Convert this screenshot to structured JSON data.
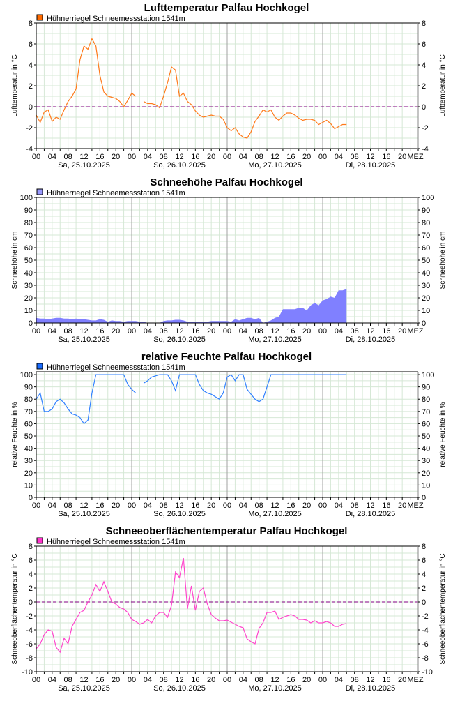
{
  "station": "Hühnerriegel Schneemessstation   1541m",
  "x_axis": {
    "hour_labels": [
      "00",
      "04",
      "08",
      "12",
      "16",
      "20",
      "00",
      "04",
      "08",
      "12",
      "16",
      "20",
      "00",
      "04",
      "08",
      "12",
      "16",
      "20",
      "00",
      "04",
      "08",
      "12",
      "16",
      "20"
    ],
    "timezone_label": "MEZ",
    "day_labels": [
      "Sa, 25.10.2025",
      "So, 26.10.2025",
      "Mo, 27.10.2025",
      "Di, 28.10.2025"
    ],
    "range_hours": [
      0,
      96
    ]
  },
  "chart_data": [
    {
      "type": "line",
      "title": "Lufttemperatur    Palfau Hochkogel",
      "ylabel": "Lufttemperatur in °C",
      "ylim": [
        -4,
        8
      ],
      "ytick_step": 2,
      "grid_step": 1,
      "zero_line": true,
      "color": "#ff7a1a",
      "legend_color": "#ff6a00",
      "legend": "Hühnerriegel Schneemessstation   1541m",
      "x_hours_step": 1,
      "values": [
        -0.8,
        -1.5,
        -0.5,
        -0.3,
        -1.4,
        -1.0,
        -1.2,
        -0.3,
        0.5,
        1.0,
        1.7,
        4.5,
        5.8,
        5.5,
        6.5,
        5.8,
        3.0,
        1.4,
        1.0,
        0.9,
        0.8,
        0.5,
        0.0,
        0.6,
        1.3,
        1.0,
        null,
        0.5,
        0.3,
        0.3,
        0.2,
        -0.1,
        1.0,
        2.3,
        3.8,
        3.5,
        1.0,
        1.3,
        0.5,
        0.2,
        -0.4,
        -0.8,
        -1.0,
        -0.9,
        -0.8,
        -0.9,
        -0.9,
        -1.2,
        -2.0,
        -2.3,
        -2.0,
        -2.6,
        -2.9,
        -3.0,
        -2.4,
        -1.4,
        -0.9,
        -0.3,
        -0.5,
        -0.3,
        -1.0,
        -1.3,
        -0.9,
        -0.6,
        -0.6,
        -0.8,
        -1.1,
        -1.3,
        -1.2,
        -1.2,
        -1.3,
        -1.7,
        -1.5,
        -1.3,
        -1.6,
        -2.1,
        -1.9,
        -1.7,
        -1.7
      ]
    },
    {
      "type": "area",
      "title": "Schneehöhe    Palfau Hochkogel",
      "ylabel": "Schneehöhe in cm",
      "ylim": [
        0,
        100
      ],
      "ytick_step": 10,
      "grid_step": 5,
      "zero_line": false,
      "color": "#8080ff",
      "legend_color": "#9a9aff",
      "legend": "Hühnerriegel Schneemessstation   1541m",
      "x_hours_step": 1,
      "values": [
        4,
        3.5,
        3.5,
        3,
        3.5,
        4,
        4,
        3.5,
        3.5,
        3,
        3.5,
        3,
        3,
        2.5,
        2,
        2,
        3,
        2.5,
        1,
        2,
        1.5,
        1.5,
        1,
        1.5,
        1.5,
        1.5,
        1,
        1,
        0,
        0,
        0,
        0,
        1.5,
        2,
        2,
        2.5,
        2.5,
        2,
        1,
        1,
        1,
        1,
        1,
        1,
        1.5,
        1.5,
        1.5,
        1.5,
        1.5,
        1,
        3,
        2,
        3,
        4,
        4,
        3,
        4,
        0,
        1,
        2,
        4,
        5,
        11,
        11,
        11,
        11,
        12,
        12,
        10,
        14,
        16,
        14,
        18,
        19,
        21,
        20,
        26,
        26,
        27
      ]
    },
    {
      "type": "line",
      "title": "relative Feuchte    Palfau Hochkogel",
      "ylabel": "relative Feuchte in %",
      "ylim": [
        0,
        102.3
      ],
      "ytick_step": 10,
      "grid_step": 5,
      "tick_max": 100,
      "zero_line": false,
      "color": "#2f80ff",
      "legend_color": "#1a6cff",
      "legend": "Hühnerriegel Schneemessstation   1541m",
      "x_hours_step": 1,
      "values": [
        80,
        85,
        70,
        70,
        72,
        78,
        80,
        77,
        72,
        68,
        67,
        65,
        60,
        63,
        85,
        100,
        100,
        100,
        100,
        100,
        100,
        100,
        100,
        92,
        88,
        85,
        null,
        93,
        95,
        98,
        99,
        100,
        100,
        100,
        95,
        87,
        100,
        100,
        100,
        100,
        100,
        92,
        87,
        85,
        84,
        82,
        80,
        85,
        98,
        100,
        95,
        100,
        100,
        88,
        84,
        80,
        78,
        80,
        90,
        100,
        100,
        100,
        100,
        100,
        100,
        100,
        100,
        100,
        100,
        100,
        100,
        100,
        100,
        100,
        100,
        100,
        100,
        100,
        100
      ]
    },
    {
      "type": "line",
      "title": "Schneeoberflächentemperatur    Palfau Hochkogel",
      "ylabel": "Schneeoberflächentemperatur in °C",
      "ylim": [
        -10,
        8
      ],
      "ytick_step": 2,
      "grid_step": 1,
      "zero_line": true,
      "color": "#ff44cc",
      "legend_color": "#ff33cc",
      "legend": "Hühnerriegel Schneemessstation   1541m",
      "x_hours_step": 1,
      "values": [
        -6.7,
        -6,
        -4.7,
        -4,
        -4.2,
        -6.5,
        -7.2,
        -5.2,
        -6,
        -3.5,
        -2.5,
        -1.5,
        -1.2,
        0,
        1,
        2.5,
        1.5,
        2.9,
        1.5,
        0,
        -0.3,
        -0.8,
        -1.0,
        -1.5,
        -2.5,
        -2.8,
        -3.2,
        -3.0,
        -2.5,
        -3,
        -2.0,
        -1.5,
        -1.5,
        -2.2,
        -0.5,
        4.3,
        3.5,
        6.3,
        -1,
        2.3,
        -1.2,
        1.5,
        2.0,
        -0.3,
        -1.8,
        -2.3,
        -2.7,
        -2.7,
        -2.6,
        -2.9,
        -3.2,
        -3.5,
        -3.7,
        -5.3,
        -5.7,
        -6,
        -3.8,
        -3,
        -1.5,
        -1.5,
        -1.3,
        -2.5,
        -2.2,
        -2,
        -1.8,
        -2,
        -2.5,
        -2.5,
        -2.6,
        -3,
        -2.7,
        -3,
        -3,
        -2.8,
        -3,
        -3.5,
        -3.5,
        -3.2,
        -3.1
      ]
    }
  ]
}
